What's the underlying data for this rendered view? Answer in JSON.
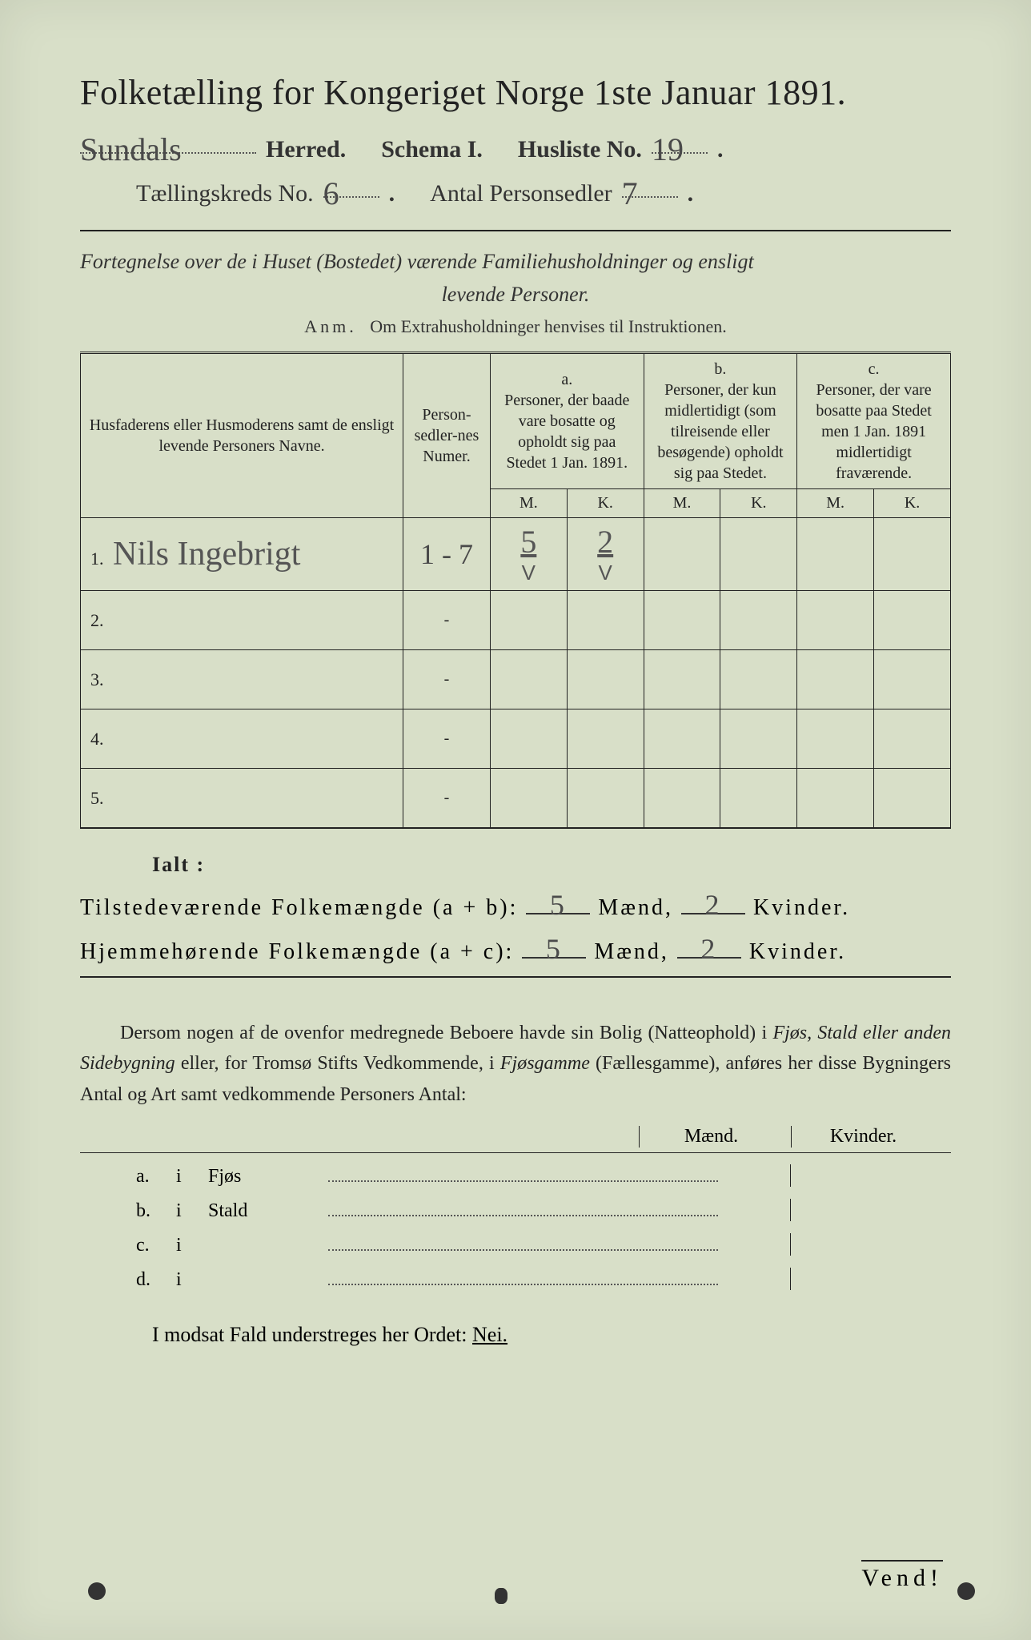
{
  "title": "Folketælling for Kongeriget Norge 1ste Januar 1891.",
  "header": {
    "herred_value": "Sundals",
    "herred_label": "Herred.",
    "schema_label": "Schema I.",
    "husliste_label": "Husliste No.",
    "husliste_value": "19",
    "kreds_label": "Tællingskreds No.",
    "kreds_value": "6",
    "personsedler_label": "Antal Personsedler",
    "personsedler_value": "7"
  },
  "subtitle_line1": "Fortegnelse over de i Huset (Bostedet) værende Familiehusholdninger og ensligt",
  "subtitle_line2": "levende Personer.",
  "anm_prefix": "Anm.",
  "anm_text": "Om Extrahusholdninger henvises til Instruktionen.",
  "table": {
    "col_name": "Husfaderens eller Husmoderens samt de ensligt levende Personers Navne.",
    "col_num": "Person-sedler-nes Numer.",
    "col_a_label": "a.",
    "col_a_text": "Personer, der baade vare bosatte og opholdt sig paa Stedet 1 Jan. 1891.",
    "col_b_label": "b.",
    "col_b_text": "Personer, der kun midlertidigt (som tilreisende eller besøgende) opholdt sig paa Stedet.",
    "col_c_label": "c.",
    "col_c_text": "Personer, der vare bosatte paa Stedet men 1 Jan. 1891 midlertidigt fraværende.",
    "m": "M.",
    "k": "K.",
    "rows": [
      {
        "n": "1.",
        "name": "Nils Ingebrigt",
        "num": "1 - 7",
        "a_m": "5",
        "a_k": "2",
        "chk_m": "V",
        "chk_k": "V"
      },
      {
        "n": "2.",
        "name": "",
        "num": "-",
        "a_m": "",
        "a_k": ""
      },
      {
        "n": "3.",
        "name": "",
        "num": "-",
        "a_m": "",
        "a_k": ""
      },
      {
        "n": "4.",
        "name": "",
        "num": "-",
        "a_m": "",
        "a_k": ""
      },
      {
        "n": "5.",
        "name": "",
        "num": "-",
        "a_m": "",
        "a_k": ""
      }
    ]
  },
  "totals": {
    "ialt": "Ialt :",
    "line1_label": "Tilstedeværende Folkemængde (a + b):",
    "line2_label": "Hjemmehørende Folkemængde (a + c):",
    "maend": "Mænd,",
    "kvinder": "Kvinder.",
    "l1_m": "5",
    "l1_k": "2",
    "l2_m": "5",
    "l2_k": "2"
  },
  "para": "Dersom nogen af de ovenfor medregnede Beboere havde sin Bolig (Natteophold) i Fjøs, Stald eller anden Sidebygning eller, for Tromsø Stifts Vedkommende, i Fjøsgamme (Fællesgamme), anføres her disse Bygningers Antal og Art samt vedkommende Personers Antal:",
  "byg": {
    "maend": "Mænd.",
    "kvinder": "Kvinder.",
    "rows": [
      {
        "key": "a.",
        "i": "i",
        "label": "Fjøs"
      },
      {
        "key": "b.",
        "i": "i",
        "label": "Stald"
      },
      {
        "key": "c.",
        "i": "i",
        "label": ""
      },
      {
        "key": "d.",
        "i": "i",
        "label": ""
      }
    ]
  },
  "nei": "I modsat Fald understreges her Ordet:",
  "nei_word": "Nei.",
  "vend": "Vend!",
  "colors": {
    "paper": "#d8dfc8",
    "ink": "#222222",
    "pencil": "#555555"
  }
}
